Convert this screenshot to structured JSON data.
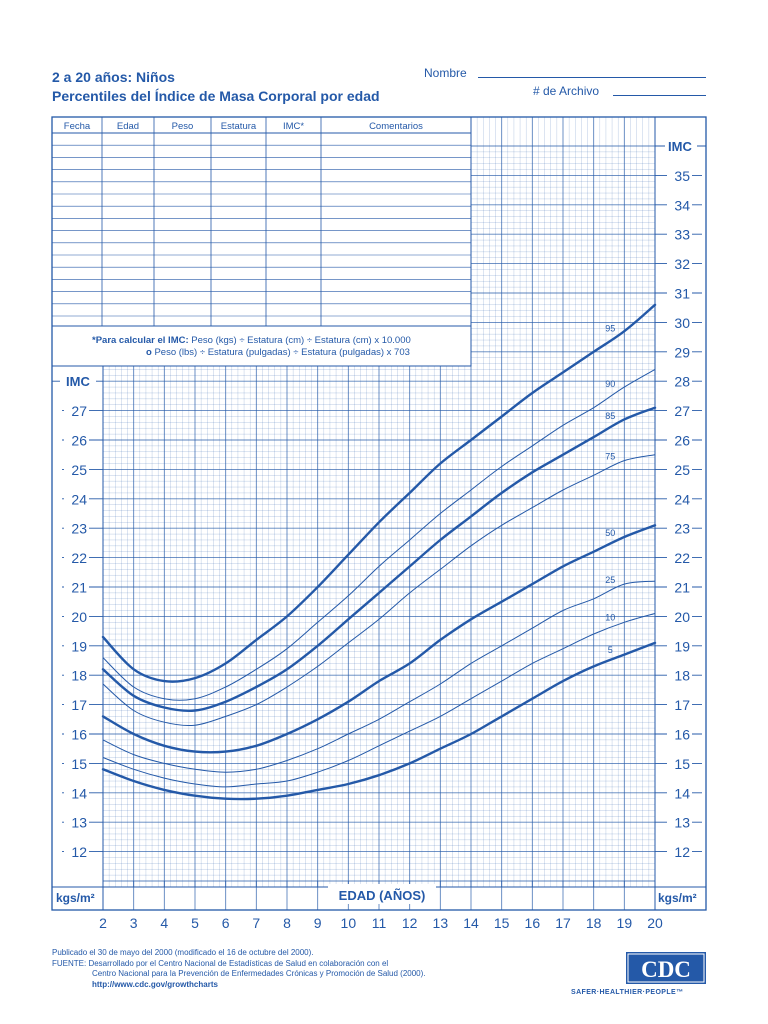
{
  "header": {
    "title_line1": "2 a 20 años: Niños",
    "title_line2": "Percentiles del Índice de Masa Corporal por edad",
    "name_label": "Nombre",
    "file_label": "# de Archivo"
  },
  "record_table": {
    "columns": [
      "Fecha",
      "Edad",
      "Peso",
      "Estatura",
      "IMC*",
      "Comentarios"
    ]
  },
  "formula": {
    "lead": "*Para calcular el IMC:",
    "metric": "Peso (kgs) ÷ Estatura (cm) ÷ Estatura (cm) x 10.000",
    "or_word": "o",
    "imperial": "Peso (lbs) ÷ Estatura (pulgadas) ÷ Estatura (pulgadas) x 703"
  },
  "footer": {
    "line1": "Publicado el 30 de mayo del 2000 (modificado el 16 de octubre del 2000).",
    "line2": "FUENTE: Desarrollado por el Centro Nacional de Estadísticas de Salud en colaboración con el",
    "line3": "Centro Nacional para la Prevención de Enfermedades Crónicas y Promoción de Salud (2000).",
    "url": "http://www.cdc.gov/growthcharts",
    "logo_text": "CDC",
    "tagline": "SAFER·HEALTHIER·PEOPLE™"
  },
  "colors": {
    "ink": "#2459a8",
    "grid": "#2459a8"
  },
  "chart_data": {
    "type": "line",
    "xlabel": "EDAD (AÑOS)",
    "ylabel_left": "IMC",
    "ylabel_right": "IMC",
    "unit_left": "kgs/m²",
    "unit_right": "kgs/m²",
    "xlim": [
      2,
      20
    ],
    "ylim": [
      11,
      36
    ],
    "left_axis_visible_range": [
      12,
      28
    ],
    "right_axis_visible_range": [
      12,
      36
    ],
    "x_ticks": [
      2,
      3,
      4,
      5,
      6,
      7,
      8,
      9,
      10,
      11,
      12,
      13,
      14,
      15,
      16,
      17,
      18,
      19,
      20
    ],
    "y_ticks_left": [
      12,
      13,
      14,
      15,
      16,
      17,
      18,
      19,
      20,
      21,
      22,
      23,
      24,
      25,
      26,
      27
    ],
    "y_ticks_right": [
      12,
      13,
      14,
      15,
      16,
      17,
      18,
      19,
      20,
      21,
      22,
      23,
      24,
      25,
      26,
      27,
      28,
      29,
      30,
      31,
      32,
      33,
      34,
      35
    ],
    "grid": true,
    "x": [
      2,
      3,
      4,
      5,
      6,
      7,
      8,
      9,
      10,
      11,
      12,
      13,
      14,
      15,
      16,
      17,
      18,
      19,
      20
    ],
    "series": [
      {
        "name": "95",
        "bold": true,
        "values": [
          19.3,
          18.2,
          17.8,
          17.9,
          18.4,
          19.2,
          20.0,
          21.0,
          22.1,
          23.2,
          24.2,
          25.2,
          26.0,
          26.8,
          27.6,
          28.3,
          29.0,
          29.7,
          30.6
        ]
      },
      {
        "name": "90",
        "bold": false,
        "values": [
          18.6,
          17.6,
          17.2,
          17.2,
          17.6,
          18.2,
          18.9,
          19.8,
          20.7,
          21.7,
          22.6,
          23.5,
          24.3,
          25.1,
          25.8,
          26.5,
          27.1,
          27.8,
          28.4
        ]
      },
      {
        "name": "85",
        "bold": true,
        "values": [
          18.2,
          17.3,
          16.9,
          16.8,
          17.1,
          17.6,
          18.2,
          19.0,
          19.9,
          20.8,
          21.7,
          22.6,
          23.4,
          24.2,
          24.9,
          25.5,
          26.1,
          26.7,
          27.1
        ]
      },
      {
        "name": "75",
        "bold": false,
        "values": [
          17.7,
          16.8,
          16.4,
          16.3,
          16.6,
          17.0,
          17.6,
          18.3,
          19.1,
          19.9,
          20.8,
          21.6,
          22.4,
          23.1,
          23.7,
          24.3,
          24.8,
          25.3,
          25.5
        ]
      },
      {
        "name": "50",
        "bold": true,
        "values": [
          16.6,
          16.0,
          15.6,
          15.4,
          15.4,
          15.6,
          16.0,
          16.5,
          17.1,
          17.8,
          18.4,
          19.2,
          19.9,
          20.5,
          21.1,
          21.7,
          22.2,
          22.7,
          23.1
        ]
      },
      {
        "name": "25",
        "bold": false,
        "values": [
          15.8,
          15.3,
          15.0,
          14.8,
          14.7,
          14.8,
          15.1,
          15.5,
          16.0,
          16.5,
          17.1,
          17.7,
          18.4,
          19.0,
          19.6,
          20.2,
          20.6,
          21.1,
          21.2
        ]
      },
      {
        "name": "10",
        "bold": false,
        "values": [
          15.2,
          14.8,
          14.5,
          14.3,
          14.2,
          14.3,
          14.4,
          14.7,
          15.1,
          15.6,
          16.1,
          16.6,
          17.2,
          17.8,
          18.4,
          18.9,
          19.4,
          19.8,
          20.1
        ]
      },
      {
        "name": "5",
        "bold": true,
        "values": [
          14.8,
          14.4,
          14.1,
          13.9,
          13.8,
          13.8,
          13.9,
          14.1,
          14.3,
          14.6,
          15.0,
          15.5,
          16.0,
          16.6,
          17.2,
          17.8,
          18.3,
          18.7,
          19.1
        ]
      }
    ]
  }
}
